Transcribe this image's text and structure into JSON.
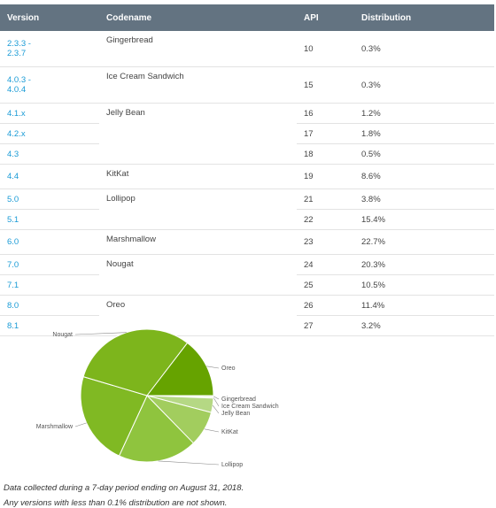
{
  "table": {
    "header": [
      "Version",
      "Codename",
      "API",
      "Distribution"
    ],
    "groups": [
      {
        "codename": "Gingerbread",
        "rows": [
          {
            "version": "2.3.3 - 2.3.7",
            "api": 10,
            "distribution": "0.3%"
          }
        ]
      },
      {
        "codename": "Ice Cream Sandwich",
        "rows": [
          {
            "version": "4.0.3 - 4.0.4",
            "api": 15,
            "distribution": "0.3%"
          }
        ]
      },
      {
        "codename": "Jelly Bean",
        "rows": [
          {
            "version": "4.1.x",
            "api": 16,
            "distribution": "1.2%"
          },
          {
            "version": "4.2.x",
            "api": 17,
            "distribution": "1.8%"
          },
          {
            "version": "4.3",
            "api": 18,
            "distribution": "0.5%"
          }
        ]
      },
      {
        "codename": "KitKat",
        "rows": [
          {
            "version": "4.4",
            "api": 19,
            "distribution": "8.6%"
          }
        ]
      },
      {
        "codename": "Lollipop",
        "rows": [
          {
            "version": "5.0",
            "api": 21,
            "distribution": "3.8%"
          },
          {
            "version": "5.1",
            "api": 22,
            "distribution": "15.4%"
          }
        ]
      },
      {
        "codename": "Marshmallow",
        "rows": [
          {
            "version": "6.0",
            "api": 23,
            "distribution": "22.7%"
          }
        ]
      },
      {
        "codename": "Nougat",
        "rows": [
          {
            "version": "7.0",
            "api": 24,
            "distribution": "20.3%"
          },
          {
            "version": "7.1",
            "api": 25,
            "distribution": "10.5%"
          }
        ]
      },
      {
        "codename": "Oreo",
        "rows": [
          {
            "version": "8.0",
            "api": 26,
            "distribution": "11.4%"
          },
          {
            "version": "8.1",
            "api": 27,
            "distribution": "3.2%"
          }
        ]
      }
    ]
  },
  "chart_data": {
    "type": "pie",
    "categories": [
      "Gingerbread",
      "Ice Cream Sandwich",
      "Jelly Bean",
      "KitKat",
      "Lollipop",
      "Marshmallow",
      "Nougat",
      "Oreo"
    ],
    "values": [
      0.3,
      0.3,
      3.5,
      8.6,
      19.2,
      22.7,
      30.8,
      14.6
    ],
    "colors": [
      "#d4e8b4",
      "#c8e2a0",
      "#b5d884",
      "#a2cd5e",
      "#8fc43e",
      "#80b923",
      "#7db51c",
      "#66a300"
    ]
  },
  "footnote": [
    "Data collected during a 7-day period ending on August 31, 2018.",
    "Any versions with less than 0.1% distribution are not shown."
  ]
}
